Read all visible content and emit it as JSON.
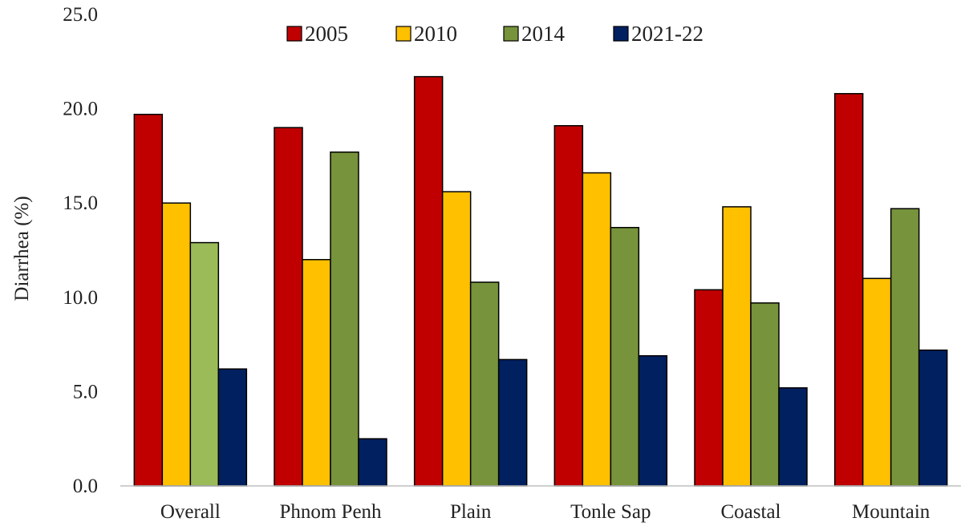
{
  "chart_data": {
    "type": "bar",
    "title": "",
    "xlabel": "",
    "ylabel": "Diarrhea (%)",
    "ylim": [
      0,
      25
    ],
    "yticks": [
      "0.0",
      "5.0",
      "10.0",
      "15.0",
      "20.0",
      "25.0"
    ],
    "grid": false,
    "legend_position": "top",
    "categories": [
      "Overall",
      "Phnom Penh",
      "Plain",
      "Tonle Sap",
      "Coastal",
      "Mountain"
    ],
    "series": [
      {
        "name": "2005",
        "color": "#C00000",
        "values": [
          19.7,
          19.0,
          21.7,
          19.1,
          10.4,
          20.8
        ]
      },
      {
        "name": "2010",
        "color": "#FFC000",
        "values": [
          15.0,
          12.0,
          15.6,
          16.6,
          14.8,
          11.0
        ]
      },
      {
        "name": "2014",
        "color": "#77933C",
        "values": [
          12.9,
          17.7,
          10.8,
          13.7,
          9.7,
          14.7
        ]
      },
      {
        "name": "2021-22",
        "color": "#002060",
        "values": [
          6.2,
          2.5,
          6.7,
          6.9,
          5.2,
          7.2
        ]
      }
    ],
    "highlight": {
      "category_index": 0,
      "series_index": 2,
      "color": "#9BBB59"
    }
  }
}
